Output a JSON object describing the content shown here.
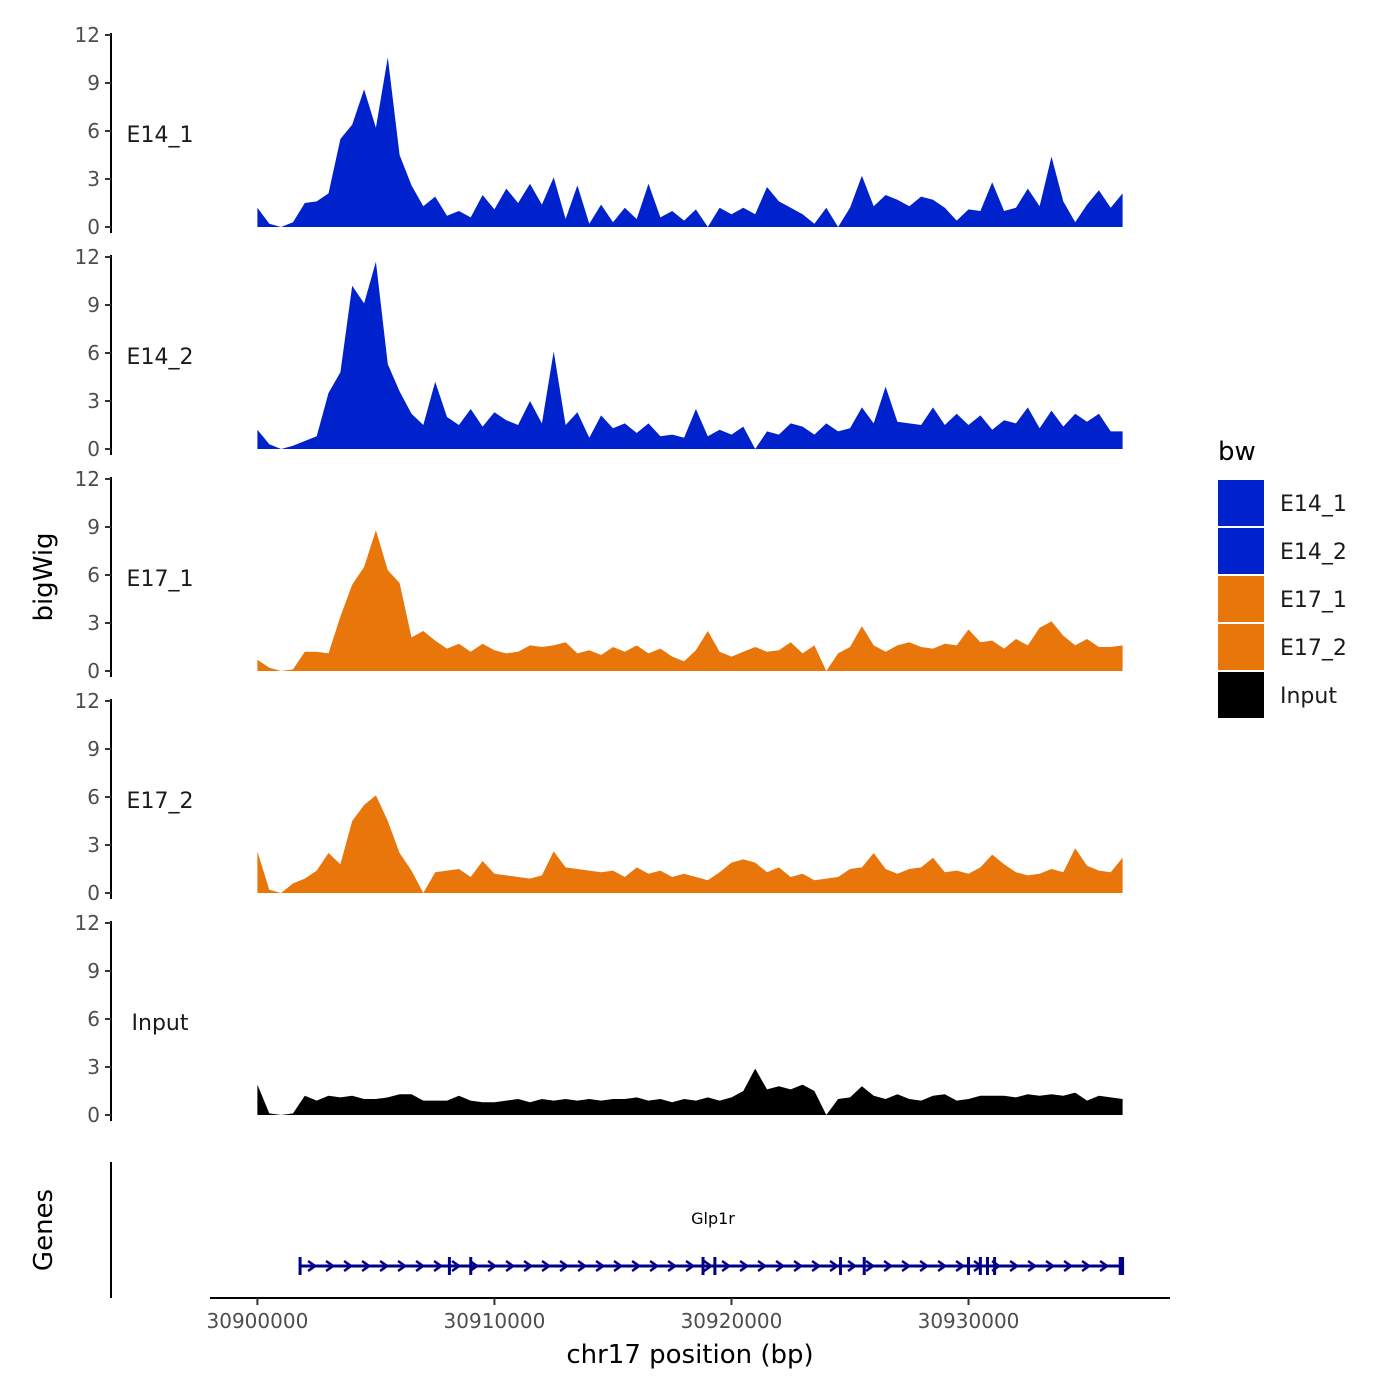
{
  "chart_data": {
    "type": "area",
    "title": "",
    "ylabel": "bigWig",
    "gene_track_label": "Genes",
    "xlabel": "chr17 position (bp)",
    "xlim": [
      30898000,
      30938500
    ],
    "x_ticks": [
      30900000,
      30910000,
      30920000,
      30930000
    ],
    "x_tick_labels": [
      "30900000",
      "30910000",
      "30920000",
      "30930000"
    ],
    "ylim": [
      0,
      12
    ],
    "y_ticks": [
      0,
      3,
      6,
      9,
      12
    ],
    "y_tick_labels": [
      "0",
      "3",
      "6",
      "9",
      "12"
    ],
    "legend": {
      "title": "bw",
      "position": "right",
      "entries": [
        {
          "label": "E14_1",
          "color": "#0022cc"
        },
        {
          "label": "E14_2",
          "color": "#0022cc"
        },
        {
          "label": "E17_1",
          "color": "#e8760a"
        },
        {
          "label": "E17_2",
          "color": "#e8760a"
        },
        {
          "label": "Input",
          "color": "#000000"
        }
      ]
    },
    "x": [
      30900000,
      30900500,
      30901000,
      30901500,
      30902000,
      30902500,
      30903000,
      30903500,
      30904000,
      30904500,
      30905000,
      30905500,
      30906000,
      30906500,
      30907000,
      30907500,
      30908000,
      30908500,
      30909000,
      30909500,
      30910000,
      30910500,
      30911000,
      30911500,
      30912000,
      30912500,
      30913000,
      30913500,
      30914000,
      30914500,
      30915000,
      30915500,
      30916000,
      30916500,
      30917000,
      30917500,
      30918000,
      30918500,
      30919000,
      30919500,
      30920000,
      30920500,
      30921000,
      30921500,
      30922000,
      30922500,
      30923000,
      30923500,
      30924000,
      30924500,
      30925000,
      30925500,
      30926000,
      30926500,
      30927000,
      30927500,
      30928000,
      30928500,
      30929000,
      30929500,
      30930000,
      30930500,
      30931000,
      30931500,
      30932000,
      30932500,
      30933000,
      30933500,
      30934000,
      30934500,
      30935000,
      30935500,
      30936000,
      30936500
    ],
    "series": [
      {
        "name": "E14_1",
        "color": "#0022cc",
        "values": [
          1.2,
          0.2,
          0,
          0.3,
          1.5,
          1.6,
          2.1,
          5.5,
          6.4,
          8.6,
          6.2,
          10.6,
          4.5,
          2.6,
          1.3,
          1.9,
          0.7,
          1.0,
          0.6,
          2.0,
          1.1,
          2.4,
          1.5,
          2.7,
          1.4,
          3.1,
          0.5,
          2.6,
          0.2,
          1.4,
          0.3,
          1.2,
          0.5,
          2.7,
          0.6,
          1.0,
          0.4,
          1.1,
          0,
          1.2,
          0.8,
          1.2,
          0.8,
          2.5,
          1.6,
          1.2,
          0.8,
          0.2,
          1.2,
          0,
          1.2,
          3.2,
          1.3,
          2.0,
          1.7,
          1.3,
          1.9,
          1.7,
          1.2,
          0.4,
          1.1,
          1.0,
          2.8,
          1.0,
          1.2,
          2.4,
          1.3,
          4.4,
          1.6,
          0.3,
          1.4,
          2.3,
          1.2,
          2.1
        ]
      },
      {
        "name": "E14_2",
        "color": "#0022cc",
        "values": [
          1.2,
          0.3,
          0,
          0.2,
          0.5,
          0.8,
          3.5,
          4.8,
          10.2,
          9.1,
          11.7,
          5.3,
          3.6,
          2.2,
          1.5,
          4.2,
          2.0,
          1.5,
          2.5,
          1.4,
          2.3,
          1.8,
          1.5,
          3.0,
          1.6,
          6.1,
          1.5,
          2.3,
          0.7,
          2.1,
          1.3,
          1.6,
          1.0,
          1.6,
          0.8,
          0.9,
          0.7,
          2.5,
          0.8,
          1.2,
          0.9,
          1.4,
          0,
          1.1,
          0.9,
          1.6,
          1.4,
          0.9,
          1.6,
          1.1,
          1.3,
          2.6,
          1.6,
          3.9,
          1.7,
          1.6,
          1.5,
          2.6,
          1.5,
          2.2,
          1.5,
          2.1,
          1.2,
          1.8,
          1.6,
          2.6,
          1.3,
          2.4,
          1.4,
          2.2,
          1.7,
          2.2,
          1.1,
          1.1
        ]
      },
      {
        "name": "E17_1",
        "color": "#e8760a",
        "values": [
          0.7,
          0.2,
          0,
          0.1,
          1.2,
          1.2,
          1.1,
          3.4,
          5.4,
          6.5,
          8.8,
          6.3,
          5.5,
          2.1,
          2.5,
          1.9,
          1.4,
          1.7,
          1.2,
          1.7,
          1.3,
          1.1,
          1.2,
          1.6,
          1.5,
          1.6,
          1.8,
          1.1,
          1.3,
          1.0,
          1.5,
          1.2,
          1.6,
          1.1,
          1.4,
          0.9,
          0.6,
          1.3,
          2.5,
          1.2,
          0.9,
          1.2,
          1.5,
          1.2,
          1.3,
          1.8,
          1.1,
          1.6,
          0,
          1.1,
          1.5,
          2.8,
          1.6,
          1.2,
          1.6,
          1.8,
          1.5,
          1.4,
          1.7,
          1.6,
          2.6,
          1.8,
          1.9,
          1.4,
          2.0,
          1.6,
          2.7,
          3.1,
          2.2,
          1.6,
          2.0,
          1.5,
          1.5,
          1.6
        ]
      },
      {
        "name": "E17_2",
        "color": "#e8760a",
        "values": [
          2.6,
          0.2,
          0,
          0.6,
          0.9,
          1.4,
          2.5,
          1.8,
          4.5,
          5.5,
          6.1,
          4.5,
          2.5,
          1.4,
          0,
          1.3,
          1.4,
          1.5,
          1.0,
          2.0,
          1.2,
          1.1,
          1.0,
          0.9,
          1.1,
          2.6,
          1.6,
          1.5,
          1.4,
          1.3,
          1.4,
          1.0,
          1.6,
          1.2,
          1.4,
          1.0,
          1.2,
          1.0,
          0.8,
          1.3,
          1.9,
          2.1,
          1.9,
          1.3,
          1.6,
          1.0,
          1.2,
          0.8,
          0.9,
          1.0,
          1.5,
          1.6,
          2.5,
          1.5,
          1.2,
          1.5,
          1.6,
          2.2,
          1.3,
          1.4,
          1.2,
          1.6,
          2.4,
          1.8,
          1.3,
          1.1,
          1.2,
          1.5,
          1.3,
          2.8,
          1.7,
          1.4,
          1.3,
          2.2
        ]
      },
      {
        "name": "Input",
        "color": "#000000",
        "values": [
          1.9,
          0.1,
          0,
          0.1,
          1.2,
          0.9,
          1.2,
          1.1,
          1.2,
          1.0,
          1.0,
          1.1,
          1.3,
          1.3,
          0.9,
          0.9,
          0.9,
          1.2,
          0.9,
          0.8,
          0.8,
          0.9,
          1.0,
          0.8,
          1.0,
          0.9,
          1.0,
          0.9,
          1.0,
          0.9,
          1.0,
          1.0,
          1.1,
          0.9,
          1.0,
          0.8,
          1.0,
          0.9,
          1.1,
          0.9,
          1.1,
          1.5,
          2.9,
          1.6,
          1.8,
          1.6,
          1.9,
          1.5,
          0,
          1.0,
          1.1,
          1.8,
          1.2,
          1.0,
          1.3,
          1.0,
          0.9,
          1.2,
          1.3,
          0.9,
          1.0,
          1.2,
          1.2,
          1.2,
          1.1,
          1.3,
          1.2,
          1.3,
          1.2,
          1.4,
          0.9,
          1.2,
          1.1,
          1.0
        ]
      }
    ],
    "gene_track": {
      "gene_name": "Glp1r",
      "strand": "+",
      "color": "#000088",
      "start": 30901800,
      "end": 30936500,
      "exons": [
        30901800,
        30908100,
        30909000,
        30918800,
        30919300,
        30924600,
        30925600,
        30930000,
        30930500,
        30930800,
        30931100,
        30936400,
        30936500
      ]
    }
  }
}
